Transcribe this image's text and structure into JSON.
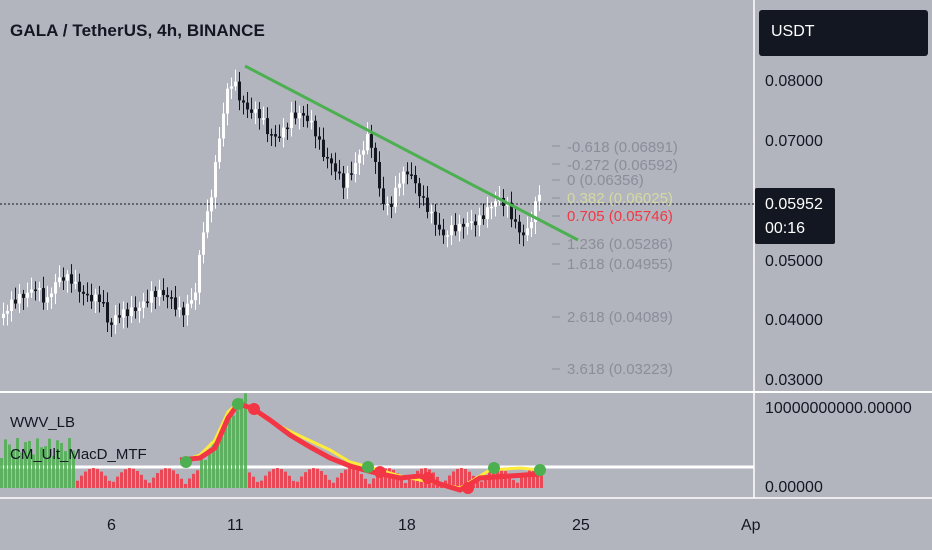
{
  "header": {
    "title": "GALA / TetherUS, 4h, BINANCE",
    "currency_button": "USDT"
  },
  "indicators": {
    "first": "WWV_LB",
    "second": "CM_Ult_MacD_MTF"
  },
  "price_axis": {
    "labels": [
      "0.08000",
      "0.07000",
      "0.05000",
      "0.04000",
      "0.03000"
    ],
    "indicator_labels": [
      "10000000000.00000",
      "0.00000"
    ]
  },
  "time_axis": {
    "labels": [
      "6",
      "11",
      "18",
      "25",
      "Ap"
    ]
  },
  "last_price": {
    "price": "0.05952",
    "countdown": "00:16"
  },
  "fib_levels": [
    {
      "text": "-0.618 (0.06891)",
      "color": "#8a8e98"
    },
    {
      "text": "-0.272 (0.06592)",
      "color": "#8a8e98"
    },
    {
      "text": "0 (0.06356)",
      "color": "#8a8e98"
    },
    {
      "text": "0.382 (0.06025)",
      "color": "#8a8e98"
    },
    {
      "text": "0.705 (0.05746)",
      "color": "#f23645"
    },
    {
      "text": "1.236 (0.05286)",
      "color": "#8a8e98"
    },
    {
      "text": "1.618 (0.04955)",
      "color": "#8a8e98"
    },
    {
      "text": "2.618 (0.04089)",
      "color": "#8a8e98"
    },
    {
      "text": "3.618 (0.03223)",
      "color": "#8a8e98"
    }
  ],
  "colors": {
    "background": "#b2b5be",
    "candle_up": "#ffffff",
    "candle_down": "#131722",
    "trendline": "#4caf50",
    "macd_red": "#f23645",
    "macd_green": "#4caf50",
    "macd_yellow": "#ffeb3b"
  }
}
